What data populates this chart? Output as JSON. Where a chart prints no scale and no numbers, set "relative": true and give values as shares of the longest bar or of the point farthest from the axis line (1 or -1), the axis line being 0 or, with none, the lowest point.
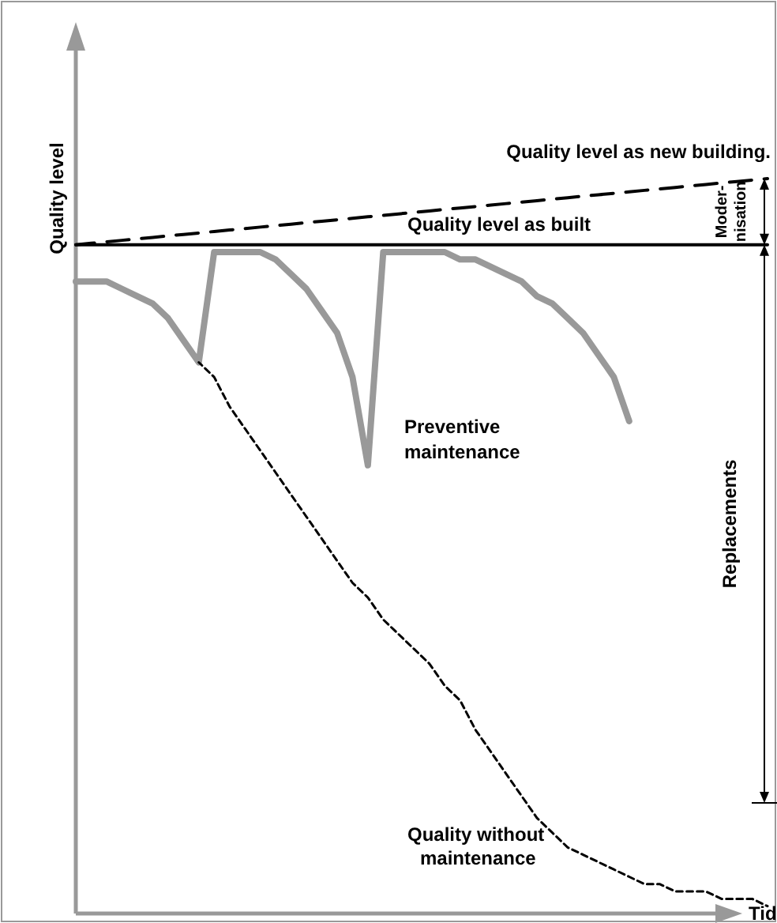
{
  "chart_data": {
    "type": "line",
    "relative": true,
    "xlabel": "Tid",
    "ylabel": "Quality level",
    "categories": [
      null,
      null,
      null,
      null,
      null,
      null,
      null,
      null,
      null,
      null,
      null,
      null,
      null,
      null,
      null,
      null,
      null,
      null,
      null,
      null,
      null,
      null,
      null,
      null,
      null,
      null,
      null,
      null,
      null,
      null,
      null,
      null,
      null,
      null,
      null,
      null,
      null,
      null,
      null,
      null,
      null,
      null,
      null,
      null,
      null,
      null
    ],
    "series": [
      {
        "color": "#000000",
        "line_style": "dashed",
        "values": [
          0.91,
          0.912,
          0.914,
          0.916,
          0.918,
          0.92,
          0.922,
          0.924,
          0.926,
          0.928,
          0.93,
          0.932,
          0.934,
          0.936,
          0.938,
          0.94,
          0.942,
          0.944,
          0.946,
          0.948,
          0.95,
          0.952,
          0.954,
          0.956,
          0.958,
          0.96,
          0.962,
          0.964,
          0.966,
          0.968,
          0.97,
          0.972,
          0.974,
          0.976,
          0.978,
          0.98,
          0.982,
          0.984,
          0.986,
          0.988,
          0.99,
          0.992,
          0.994,
          0.996,
          0.998,
          1.0
        ]
      },
      {
        "color": "#000000",
        "line_style": "solid",
        "values": [
          0.91,
          0.91,
          0.91,
          0.91,
          0.91,
          0.91,
          0.91,
          0.91,
          0.91,
          0.91,
          0.91,
          0.91,
          0.91,
          0.91,
          0.91,
          0.91,
          0.91,
          0.91,
          0.91,
          0.91,
          0.91,
          0.91,
          0.91,
          0.91,
          0.91,
          0.91,
          0.91,
          0.91,
          0.91,
          0.91,
          0.91,
          0.91,
          0.91,
          0.91,
          0.91,
          0.91,
          0.91,
          0.91,
          0.91,
          0.91,
          0.91,
          0.91,
          0.91,
          0.91,
          0.91,
          0.91
        ]
      },
      {
        "color": "#999999",
        "line_style": "solid",
        "values": [
          0.86,
          0.86,
          0.86,
          0.85,
          0.84,
          0.83,
          0.81,
          0.78,
          0.75,
          0.9,
          0.9,
          0.9,
          0.9,
          0.89,
          0.87,
          0.85,
          0.82,
          0.79,
          0.73,
          0.61,
          0.9,
          0.9,
          0.9,
          0.9,
          0.9,
          0.89,
          0.89,
          0.88,
          0.87,
          0.86,
          0.84,
          0.83,
          0.81,
          0.79,
          0.76,
          0.73,
          0.67,
          null,
          null,
          null,
          null,
          null,
          null,
          null,
          null,
          null
        ]
      },
      {
        "color": "#000000",
        "line_style": "dashed",
        "values": [
          null,
          null,
          null,
          null,
          null,
          null,
          null,
          null,
          0.75,
          0.73,
          0.69,
          0.66,
          0.63,
          0.6,
          0.57,
          0.54,
          0.51,
          0.48,
          0.45,
          0.43,
          0.4,
          0.38,
          0.36,
          0.34,
          0.31,
          0.29,
          0.25,
          0.22,
          0.19,
          0.16,
          0.13,
          0.11,
          0.09,
          0.08,
          0.07,
          0.06,
          0.05,
          0.04,
          0.04,
          0.03,
          0.03,
          0.03,
          0.02,
          0.02,
          0.02,
          0.01
        ]
      }
    ],
    "annotations": [
      "Quality level as new building.",
      "Quality level as built",
      "Preventive maintenance",
      "Quality without maintenance",
      "Moder-nisation",
      "Replacements"
    ]
  }
}
